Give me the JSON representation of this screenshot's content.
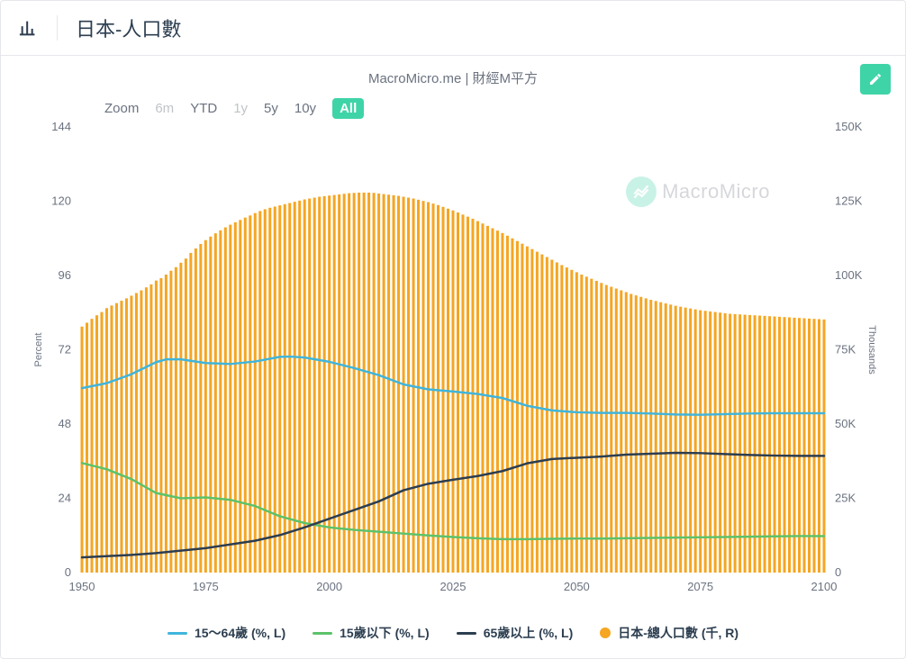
{
  "header": {
    "title": "日本-人口數",
    "subtitle": "MacroMicro.me | 財經M平方",
    "watermark_text": "MacroMicro"
  },
  "zoom": {
    "label": "Zoom",
    "buttons": [
      {
        "label": "6m",
        "enabled": false,
        "active": false
      },
      {
        "label": "YTD",
        "enabled": true,
        "active": false
      },
      {
        "label": "1y",
        "enabled": false,
        "active": false
      },
      {
        "label": "5y",
        "enabled": true,
        "active": false
      },
      {
        "label": "10y",
        "enabled": true,
        "active": false
      },
      {
        "label": "All",
        "enabled": true,
        "active": true
      }
    ]
  },
  "chart": {
    "type": "combo-bar-line",
    "x": {
      "min": 1950,
      "max": 2100,
      "tick_step": 25
    },
    "y_left": {
      "label": "Percent",
      "min": 0,
      "max": 144,
      "tick_step": 24,
      "label_fontsize": 11,
      "tick_fontsize": 13,
      "label_color": "#6b7280"
    },
    "y_right": {
      "label": "Thousands",
      "min": 0,
      "max": 150000,
      "tick_step": 25000,
      "tick_format": "K",
      "label_fontsize": 11,
      "tick_fontsize": 13,
      "label_color": "#6b7280"
    },
    "grid": {
      "show": false
    },
    "background_color": "#ffffff",
    "bar_series": {
      "name": "日本-總人口數 (千, R)",
      "axis": "right",
      "color": "#f5a623",
      "bar_width_ratio": 0.55,
      "step_years": 1,
      "data": [
        [
          1950,
          82800
        ],
        [
          1951,
          84100
        ],
        [
          1952,
          85400
        ],
        [
          1953,
          86600
        ],
        [
          1954,
          87700
        ],
        [
          1955,
          89000
        ],
        [
          1956,
          89900
        ],
        [
          1957,
          90700
        ],
        [
          1958,
          91500
        ],
        [
          1959,
          92300
        ],
        [
          1960,
          93200
        ],
        [
          1961,
          94100
        ],
        [
          1962,
          95000
        ],
        [
          1963,
          96000
        ],
        [
          1964,
          97000
        ],
        [
          1965,
          98300
        ],
        [
          1966,
          99100
        ],
        [
          1967,
          100300
        ],
        [
          1968,
          101600
        ],
        [
          1969,
          102800
        ],
        [
          1970,
          104300
        ],
        [
          1971,
          105700
        ],
        [
          1972,
          107600
        ],
        [
          1973,
          109100
        ],
        [
          1974,
          110600
        ],
        [
          1975,
          111900
        ],
        [
          1976,
          113100
        ],
        [
          1977,
          114200
        ],
        [
          1978,
          115200
        ],
        [
          1979,
          116200
        ],
        [
          1980,
          117100
        ],
        [
          1981,
          117900
        ],
        [
          1982,
          118700
        ],
        [
          1983,
          119500
        ],
        [
          1984,
          120200
        ],
        [
          1985,
          121000
        ],
        [
          1986,
          121700
        ],
        [
          1987,
          122300
        ],
        [
          1988,
          122800
        ],
        [
          1989,
          123200
        ],
        [
          1990,
          123600
        ],
        [
          1991,
          124000
        ],
        [
          1992,
          124400
        ],
        [
          1993,
          124800
        ],
        [
          1994,
          125200
        ],
        [
          1995,
          125600
        ],
        [
          1996,
          125900
        ],
        [
          1997,
          126200
        ],
        [
          1998,
          126500
        ],
        [
          1999,
          126700
        ],
        [
          2000,
          126900
        ],
        [
          2001,
          127100
        ],
        [
          2002,
          127300
        ],
        [
          2003,
          127500
        ],
        [
          2004,
          127700
        ],
        [
          2005,
          127800
        ],
        [
          2006,
          127900
        ],
        [
          2007,
          127900
        ],
        [
          2008,
          127900
        ],
        [
          2009,
          127800
        ],
        [
          2010,
          127600
        ],
        [
          2011,
          127400
        ],
        [
          2012,
          127200
        ],
        [
          2013,
          127000
        ],
        [
          2014,
          126800
        ],
        [
          2015,
          126500
        ],
        [
          2016,
          126200
        ],
        [
          2017,
          125900
        ],
        [
          2018,
          125500
        ],
        [
          2019,
          125100
        ],
        [
          2020,
          124700
        ],
        [
          2021,
          124200
        ],
        [
          2022,
          123700
        ],
        [
          2023,
          123100
        ],
        [
          2024,
          122500
        ],
        [
          2025,
          121900
        ],
        [
          2026,
          121200
        ],
        [
          2027,
          120500
        ],
        [
          2028,
          119800
        ],
        [
          2029,
          119100
        ],
        [
          2030,
          118300
        ],
        [
          2031,
          117500
        ],
        [
          2032,
          116700
        ],
        [
          2033,
          115900
        ],
        [
          2034,
          115100
        ],
        [
          2035,
          114300
        ],
        [
          2036,
          113400
        ],
        [
          2037,
          112500
        ],
        [
          2038,
          111600
        ],
        [
          2039,
          110700
        ],
        [
          2040,
          109800
        ],
        [
          2041,
          108900
        ],
        [
          2042,
          108000
        ],
        [
          2043,
          107100
        ],
        [
          2044,
          106200
        ],
        [
          2045,
          105300
        ],
        [
          2046,
          104400
        ],
        [
          2047,
          103500
        ],
        [
          2048,
          102700
        ],
        [
          2049,
          101900
        ],
        [
          2050,
          101100
        ],
        [
          2051,
          100300
        ],
        [
          2052,
          99600
        ],
        [
          2053,
          98900
        ],
        [
          2054,
          98200
        ],
        [
          2055,
          97500
        ],
        [
          2056,
          96800
        ],
        [
          2057,
          96200
        ],
        [
          2058,
          95600
        ],
        [
          2059,
          95000
        ],
        [
          2060,
          94400
        ],
        [
          2061,
          93800
        ],
        [
          2062,
          93300
        ],
        [
          2063,
          92800
        ],
        [
          2064,
          92300
        ],
        [
          2065,
          91800
        ],
        [
          2066,
          91400
        ],
        [
          2067,
          91000
        ],
        [
          2068,
          90600
        ],
        [
          2069,
          90200
        ],
        [
          2070,
          89800
        ],
        [
          2071,
          89500
        ],
        [
          2072,
          89200
        ],
        [
          2073,
          88900
        ],
        [
          2074,
          88600
        ],
        [
          2075,
          88300
        ],
        [
          2076,
          88100
        ],
        [
          2077,
          87900
        ],
        [
          2078,
          87700
        ],
        [
          2079,
          87500
        ],
        [
          2080,
          87300
        ],
        [
          2081,
          87100
        ],
        [
          2082,
          87000
        ],
        [
          2083,
          86900
        ],
        [
          2084,
          86800
        ],
        [
          2085,
          86700
        ],
        [
          2086,
          86600
        ],
        [
          2087,
          86500
        ],
        [
          2088,
          86400
        ],
        [
          2089,
          86300
        ],
        [
          2090,
          86200
        ],
        [
          2091,
          86100
        ],
        [
          2092,
          86000
        ],
        [
          2093,
          85900
        ],
        [
          2094,
          85800
        ],
        [
          2095,
          85700
        ],
        [
          2096,
          85600
        ],
        [
          2097,
          85500
        ],
        [
          2098,
          85400
        ],
        [
          2099,
          85300
        ],
        [
          2100,
          85200
        ]
      ]
    },
    "line_series": [
      {
        "name": "15～64歲 (%, L)",
        "axis": "left",
        "color": "#3fb5db",
        "width": 2.5,
        "data": [
          [
            1950,
            59.6
          ],
          [
            1955,
            61.2
          ],
          [
            1960,
            64.1
          ],
          [
            1965,
            68.0
          ],
          [
            1967,
            68.9
          ],
          [
            1970,
            68.9
          ],
          [
            1975,
            67.7
          ],
          [
            1980,
            67.4
          ],
          [
            1985,
            68.2
          ],
          [
            1990,
            69.7
          ],
          [
            1992,
            69.8
          ],
          [
            1995,
            69.5
          ],
          [
            2000,
            68.1
          ],
          [
            2005,
            66.1
          ],
          [
            2010,
            63.8
          ],
          [
            2015,
            60.8
          ],
          [
            2020,
            59.2
          ],
          [
            2025,
            58.5
          ],
          [
            2030,
            57.7
          ],
          [
            2035,
            56.4
          ],
          [
            2040,
            53.9
          ],
          [
            2045,
            52.4
          ],
          [
            2050,
            51.8
          ],
          [
            2055,
            51.6
          ],
          [
            2060,
            51.6
          ],
          [
            2065,
            51.4
          ],
          [
            2070,
            51.1
          ],
          [
            2075,
            51.0
          ],
          [
            2080,
            51.2
          ],
          [
            2085,
            51.4
          ],
          [
            2090,
            51.5
          ],
          [
            2095,
            51.5
          ],
          [
            2100,
            51.5
          ]
        ]
      },
      {
        "name": "15歲以下 (%, L)",
        "axis": "left",
        "color": "#5cc26a",
        "width": 2.5,
        "data": [
          [
            1950,
            35.4
          ],
          [
            1955,
            33.4
          ],
          [
            1960,
            30.2
          ],
          [
            1965,
            25.7
          ],
          [
            1970,
            24.0
          ],
          [
            1975,
            24.3
          ],
          [
            1980,
            23.5
          ],
          [
            1985,
            21.5
          ],
          [
            1990,
            18.2
          ],
          [
            1995,
            16.0
          ],
          [
            2000,
            14.6
          ],
          [
            2005,
            13.8
          ],
          [
            2010,
            13.2
          ],
          [
            2015,
            12.6
          ],
          [
            2020,
            12.0
          ],
          [
            2025,
            11.5
          ],
          [
            2030,
            11.1
          ],
          [
            2035,
            10.8
          ],
          [
            2040,
            10.8
          ],
          [
            2045,
            10.9
          ],
          [
            2050,
            11.0
          ],
          [
            2055,
            11.0
          ],
          [
            2060,
            11.1
          ],
          [
            2065,
            11.2
          ],
          [
            2070,
            11.3
          ],
          [
            2075,
            11.4
          ],
          [
            2080,
            11.5
          ],
          [
            2085,
            11.6
          ],
          [
            2090,
            11.7
          ],
          [
            2095,
            11.8
          ],
          [
            2100,
            11.8
          ]
        ]
      },
      {
        "name": "65歲以上 (%, L)",
        "axis": "left",
        "color": "#2c3e50",
        "width": 2.5,
        "data": [
          [
            1950,
            4.9
          ],
          [
            1955,
            5.3
          ],
          [
            1960,
            5.7
          ],
          [
            1965,
            6.3
          ],
          [
            1970,
            7.1
          ],
          [
            1975,
            7.9
          ],
          [
            1980,
            9.1
          ],
          [
            1985,
            10.3
          ],
          [
            1990,
            12.1
          ],
          [
            1995,
            14.6
          ],
          [
            2000,
            17.4
          ],
          [
            2005,
            20.2
          ],
          [
            2010,
            23.0
          ],
          [
            2015,
            26.6
          ],
          [
            2020,
            28.7
          ],
          [
            2025,
            30.0
          ],
          [
            2030,
            31.2
          ],
          [
            2035,
            32.8
          ],
          [
            2040,
            35.3
          ],
          [
            2045,
            36.7
          ],
          [
            2050,
            37.1
          ],
          [
            2055,
            37.5
          ],
          [
            2060,
            38.1
          ],
          [
            2065,
            38.4
          ],
          [
            2070,
            38.7
          ],
          [
            2075,
            38.6
          ],
          [
            2080,
            38.3
          ],
          [
            2085,
            38.0
          ],
          [
            2090,
            37.8
          ],
          [
            2095,
            37.7
          ],
          [
            2100,
            37.7
          ]
        ]
      }
    ]
  },
  "legend": [
    {
      "type": "line",
      "color": "#3fb5db",
      "label": "15～64歲 (%, L)"
    },
    {
      "type": "line",
      "color": "#5cc26a",
      "label": "15歲以下 (%, L)"
    },
    {
      "type": "line",
      "color": "#2c3e50",
      "label": "65歲以上 (%, L)"
    },
    {
      "type": "dot",
      "color": "#f5a623",
      "label": "日本-總人口數 (千, R)"
    }
  ],
  "colors": {
    "border": "#e5e7eb",
    "text": "#2c3e50",
    "muted": "#6b7280",
    "accent": "#3fd4a8",
    "bar": "#f5a623"
  }
}
